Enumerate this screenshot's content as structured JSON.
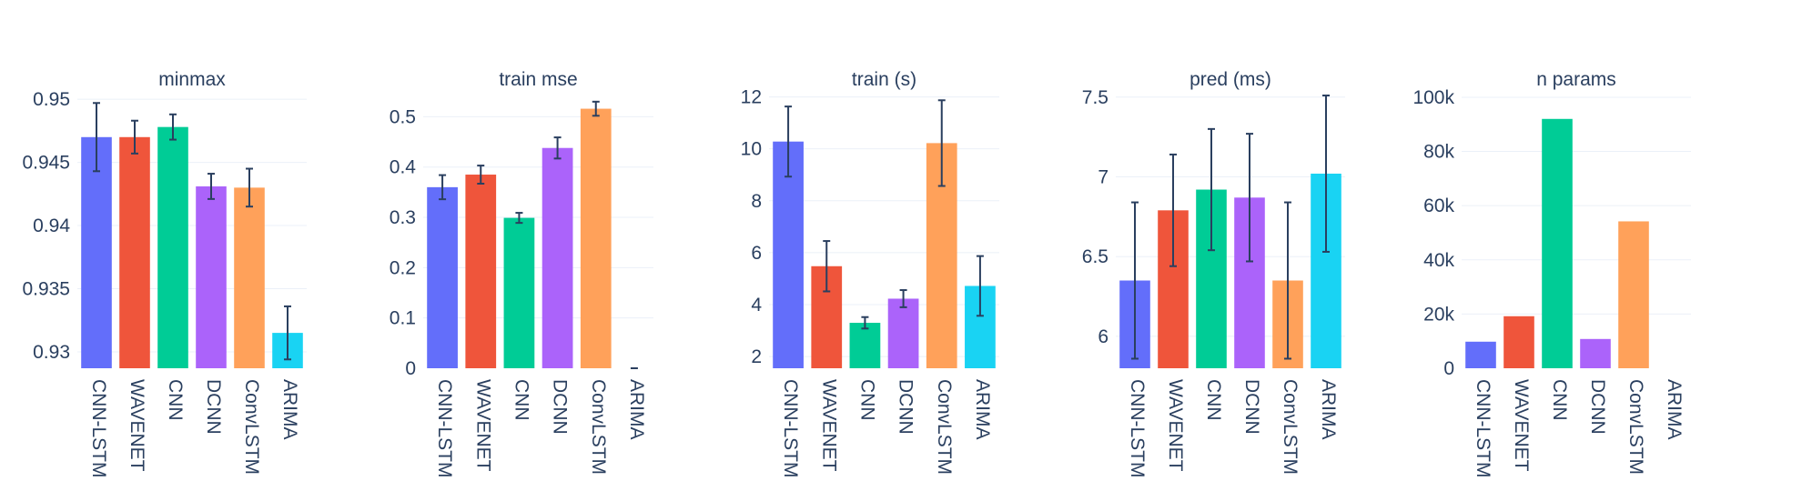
{
  "chart_data": [
    {
      "type": "bar",
      "title": "minmax",
      "categories": [
        "CNN-LSTM",
        "WAVENET",
        "CNN",
        "DCNN",
        "ConvLSTM",
        "ARIMA"
      ],
      "values": [
        0.947,
        0.947,
        0.9478,
        0.9431,
        0.943,
        0.9315
      ],
      "errors": [
        0.0027,
        0.0013,
        0.001,
        0.001,
        0.0015,
        0.0021
      ],
      "ylim": [
        0.9287,
        0.9508
      ],
      "yticks": [
        0.93,
        0.935,
        0.94,
        0.945,
        0.95
      ],
      "ytick_labels": [
        "0.93",
        "0.935",
        "0.94",
        "0.945",
        "0.95"
      ],
      "grid": true
    },
    {
      "type": "bar",
      "title": "train mse",
      "categories": [
        "CNN-LSTM",
        "WAVENET",
        "CNN",
        "DCNN",
        "ConvLSTM",
        "ARIMA"
      ],
      "values": [
        0.36,
        0.385,
        0.299,
        0.438,
        0.516,
        0.0
      ],
      "errors": [
        0.024,
        0.018,
        0.01,
        0.021,
        0.014,
        0.0
      ],
      "ylim": [
        0,
        0.555
      ],
      "yticks": [
        0,
        0.1,
        0.2,
        0.3,
        0.4,
        0.5
      ],
      "ytick_labels": [
        "0",
        "0.1",
        "0.2",
        "0.3",
        "0.4",
        "0.5"
      ],
      "grid": true
    },
    {
      "type": "bar",
      "title": "train (s)",
      "categories": [
        "CNN-LSTM",
        "WAVENET",
        "CNN",
        "DCNN",
        "ConvLSTM",
        "ARIMA"
      ],
      "values": [
        10.28,
        5.48,
        3.3,
        4.23,
        10.22,
        4.72
      ],
      "errors": [
        1.35,
        0.97,
        0.22,
        0.33,
        1.65,
        1.15
      ],
      "ylim": [
        1.55,
        12.3
      ],
      "yticks": [
        2,
        4,
        6,
        8,
        10,
        12
      ],
      "ytick_labels": [
        "2",
        "4",
        "6",
        "8",
        "10",
        "12"
      ],
      "grid": true
    },
    {
      "type": "bar",
      "title": "pred (ms)",
      "categories": [
        "CNN-LSTM",
        "WAVENET",
        "CNN",
        "DCNN",
        "ConvLSTM",
        "ARIMA"
      ],
      "values": [
        6.35,
        6.79,
        6.92,
        6.87,
        6.35,
        7.02
      ],
      "errors": [
        0.49,
        0.35,
        0.38,
        0.4,
        0.49,
        0.49
      ],
      "ylim": [
        5.8,
        7.55
      ],
      "yticks": [
        6,
        6.5,
        7,
        7.5
      ],
      "ytick_labels": [
        "6",
        "6.5",
        "7",
        "7.5"
      ],
      "grid": true
    },
    {
      "type": "bar",
      "title": "n params",
      "categories": [
        "CNN-LSTM",
        "WAVENET",
        "CNN",
        "DCNN",
        "ConvLSTM",
        "ARIMA"
      ],
      "values": [
        9800,
        19200,
        92000,
        10800,
        54200,
        0
      ],
      "errors": null,
      "ylim": [
        0,
        103000
      ],
      "yticks": [
        0,
        20000,
        40000,
        60000,
        80000,
        100000
      ],
      "ytick_labels": [
        "0",
        "20k",
        "40k",
        "60k",
        "80k",
        "100k"
      ],
      "grid": true
    }
  ],
  "colors": [
    "#636efa",
    "#ef553b",
    "#00cc96",
    "#ab63fa",
    "#ffa15a",
    "#19d3f3"
  ],
  "errorbar_color": "#2a3f5f"
}
